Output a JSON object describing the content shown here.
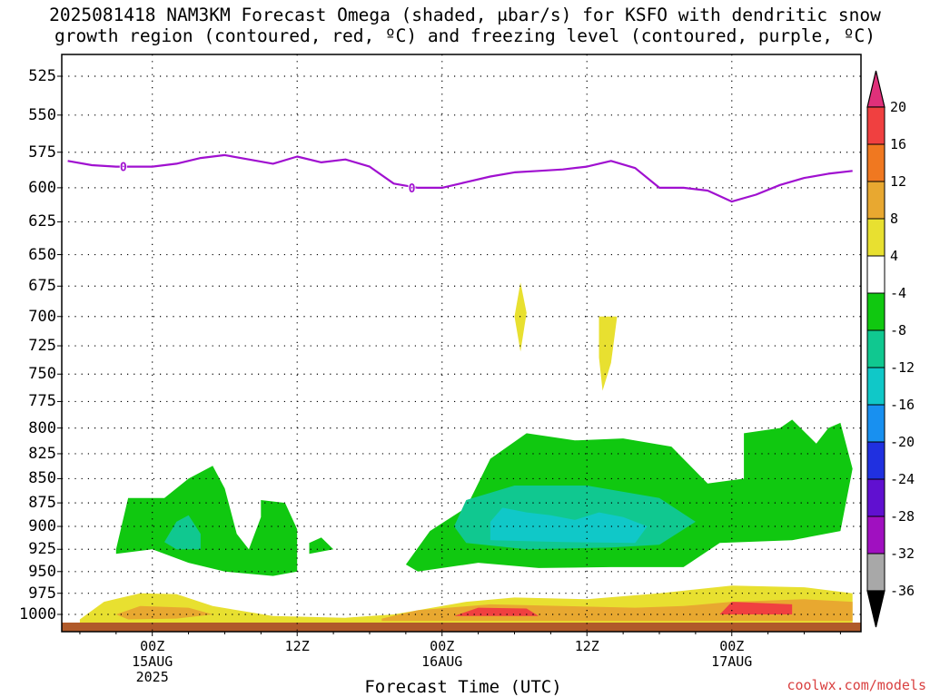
{
  "title_line1": "2025081418 NAM3KM Forecast Omega (shaded, μbar/s) for KSFO with dendritic snow",
  "title_line2": "growth region (contoured, red, ºC) and freezing level (contoured, purple, ºC)",
  "xaxis_label": "Forecast Time (UTC)",
  "credit": "coolwx.com/models",
  "chart_data": {
    "type": "heatmap",
    "title": "2025081418 NAM3KM Forecast Omega (shaded, μbar/s) for KSFO with dendritic snow growth region (contoured, red, ºC) and freezing level (contoured, purple, ºC)",
    "xlabel": "Forecast Time (UTC)",
    "ylabel": "",
    "y_ticks": [
      "525",
      "550",
      "575",
      "600",
      "625",
      "650",
      "675",
      "700",
      "725",
      "750",
      "775",
      "800",
      "825",
      "850",
      "875",
      "900",
      "925",
      "950",
      "975",
      "1000"
    ],
    "x_ticks": [
      {
        "label": "00Z",
        "sub1": "15AUG",
        "sub2": "2025"
      },
      {
        "label": "12Z",
        "sub1": "",
        "sub2": ""
      },
      {
        "label": "00Z",
        "sub1": "16AUG",
        "sub2": ""
      },
      {
        "label": "12Z",
        "sub1": "",
        "sub2": ""
      },
      {
        "label": "00Z",
        "sub1": "17AUG",
        "sub2": ""
      }
    ],
    "y_range_hpa": [
      1015,
      510
    ],
    "grid": true,
    "colorbar": {
      "labels": [
        "20",
        "16",
        "12",
        "8",
        "4",
        "-4",
        "-8",
        "-12",
        "-16",
        "-20",
        "-24",
        "-28",
        "-32",
        "-36"
      ],
      "bins": [
        {
          "low": 20,
          "high": 99,
          "color": "#e0307a"
        },
        {
          "low": 16,
          "high": 20,
          "color": "#f04040"
        },
        {
          "low": 12,
          "high": 16,
          "color": "#f07820"
        },
        {
          "low": 8,
          "high": 12,
          "color": "#e8a830"
        },
        {
          "low": 4,
          "high": 8,
          "color": "#e8e030"
        },
        {
          "low": -4,
          "high": 4,
          "color": "#ffffff"
        },
        {
          "low": -8,
          "high": -4,
          "color": "#10c810"
        },
        {
          "low": -12,
          "high": -8,
          "color": "#10c890"
        },
        {
          "low": -16,
          "high": -12,
          "color": "#10c8c8"
        },
        {
          "low": -20,
          "high": -16,
          "color": "#1890f0"
        },
        {
          "low": -24,
          "high": -20,
          "color": "#2030e0"
        },
        {
          "low": -28,
          "high": -24,
          "color": "#6010d0"
        },
        {
          "low": -32,
          "high": -28,
          "color": "#a010c0"
        },
        {
          "low": -36,
          "high": -32,
          "color": "#a8a8a8"
        },
        {
          "low": -99,
          "high": -36,
          "color": "#000000"
        }
      ]
    },
    "freezing_level": {
      "color": "#a010d0",
      "contour_label": "0",
      "series": [
        {
          "time_h": -7,
          "hpa": 581
        },
        {
          "time_h": -5,
          "hpa": 584
        },
        {
          "time_h": -3,
          "hpa": 585
        },
        {
          "time_h": 0,
          "hpa": 585
        },
        {
          "time_h": 2,
          "hpa": 583
        },
        {
          "time_h": 4,
          "hpa": 579
        },
        {
          "time_h": 6,
          "hpa": 577
        },
        {
          "time_h": 8,
          "hpa": 580
        },
        {
          "time_h": 10,
          "hpa": 583
        },
        {
          "time_h": 12,
          "hpa": 578
        },
        {
          "time_h": 14,
          "hpa": 582
        },
        {
          "time_h": 16,
          "hpa": 580
        },
        {
          "time_h": 18,
          "hpa": 585
        },
        {
          "time_h": 20,
          "hpa": 597
        },
        {
          "time_h": 22,
          "hpa": 600
        },
        {
          "time_h": 24,
          "hpa": 600
        },
        {
          "time_h": 26,
          "hpa": 596
        },
        {
          "time_h": 28,
          "hpa": 592
        },
        {
          "time_h": 30,
          "hpa": 589
        },
        {
          "time_h": 32,
          "hpa": 588
        },
        {
          "time_h": 34,
          "hpa": 587
        },
        {
          "time_h": 36,
          "hpa": 585
        },
        {
          "time_h": 38,
          "hpa": 581
        },
        {
          "time_h": 40,
          "hpa": 586
        },
        {
          "time_h": 42,
          "hpa": 600
        },
        {
          "time_h": 44,
          "hpa": 600
        },
        {
          "time_h": 46,
          "hpa": 602
        },
        {
          "time_h": 48,
          "hpa": 610
        },
        {
          "time_h": 50,
          "hpa": 605
        },
        {
          "time_h": 52,
          "hpa": 598
        },
        {
          "time_h": 54,
          "hpa": 593
        },
        {
          "time_h": 56,
          "hpa": 590
        },
        {
          "time_h": 58,
          "hpa": 588
        }
      ]
    },
    "omega_regions": [
      {
        "name": "surface-warm",
        "value": 6,
        "points": [
          [
            -6,
            1006
          ],
          [
            -4,
            985
          ],
          [
            -1,
            975
          ],
          [
            2,
            976
          ],
          [
            5,
            990
          ],
          [
            10,
            1002
          ],
          [
            16,
            1004
          ],
          [
            20,
            1000
          ],
          [
            26,
            985
          ],
          [
            30,
            980
          ],
          [
            36,
            982
          ],
          [
            42,
            975
          ],
          [
            48,
            966
          ],
          [
            54,
            968
          ],
          [
            58,
            975
          ],
          [
            58,
            1010
          ],
          [
            -6,
            1010
          ]
        ]
      },
      {
        "name": "surface-orange-1",
        "value": 10,
        "points": [
          [
            -3,
            1000
          ],
          [
            -1,
            990
          ],
          [
            3,
            992
          ],
          [
            5,
            1000
          ],
          [
            2,
            1005
          ],
          [
            -2,
            1006
          ]
        ]
      },
      {
        "name": "surface-orange-2",
        "value": 10,
        "points": [
          [
            19,
            1005
          ],
          [
            22,
            995
          ],
          [
            28,
            988
          ],
          [
            34,
            990
          ],
          [
            40,
            992
          ],
          [
            44,
            990
          ],
          [
            48,
            985
          ],
          [
            54,
            982
          ],
          [
            58,
            985
          ],
          [
            58,
            1008
          ],
          [
            19,
            1008
          ]
        ]
      },
      {
        "name": "surface-red-1",
        "value": 17,
        "points": [
          [
            25,
            1002
          ],
          [
            27,
            992
          ],
          [
            31,
            993
          ],
          [
            32,
            1002
          ]
        ]
      },
      {
        "name": "surface-red-2",
        "value": 17,
        "points": [
          [
            47,
            1000
          ],
          [
            48,
            985
          ],
          [
            53,
            988
          ],
          [
            53,
            1000
          ]
        ]
      },
      {
        "name": "rising-green-1",
        "value": -6,
        "points": [
          [
            -3,
            925
          ],
          [
            -2,
            870
          ],
          [
            1,
            870
          ],
          [
            3,
            850
          ],
          [
            5,
            837
          ],
          [
            6,
            860
          ],
          [
            7,
            908
          ],
          [
            8,
            925
          ],
          [
            9,
            890
          ],
          [
            9,
            872
          ],
          [
            11,
            875
          ],
          [
            12,
            903
          ],
          [
            12,
            950
          ],
          [
            10,
            955
          ],
          [
            6,
            950
          ],
          [
            3,
            940
          ],
          [
            0,
            925
          ],
          [
            -3,
            930
          ]
        ]
      },
      {
        "name": "rising-green-2",
        "value": -6,
        "points": [
          [
            13,
            918
          ],
          [
            14,
            912
          ],
          [
            15,
            925
          ],
          [
            13,
            930
          ]
        ]
      },
      {
        "name": "rising-green-3",
        "value": -6,
        "points": [
          [
            21,
            942
          ],
          [
            23,
            905
          ],
          [
            26,
            880
          ],
          [
            28,
            830
          ],
          [
            31,
            805
          ],
          [
            35,
            812
          ],
          [
            39,
            810
          ],
          [
            43,
            818
          ],
          [
            46,
            855
          ],
          [
            49,
            850
          ],
          [
            49,
            805
          ],
          [
            52,
            800
          ],
          [
            53,
            792
          ],
          [
            55,
            815
          ],
          [
            56,
            800
          ],
          [
            57,
            795
          ],
          [
            58,
            840
          ],
          [
            57,
            905
          ],
          [
            53,
            915
          ],
          [
            47,
            918
          ],
          [
            44,
            945
          ],
          [
            38,
            945
          ],
          [
            32,
            946
          ],
          [
            27,
            940
          ],
          [
            22,
            950
          ]
        ]
      },
      {
        "name": "rising-teal",
        "value": -10,
        "points": [
          [
            25,
            900
          ],
          [
            26,
            872
          ],
          [
            30,
            857
          ],
          [
            36,
            857
          ],
          [
            42,
            870
          ],
          [
            45,
            895
          ],
          [
            42,
            920
          ],
          [
            38,
            923
          ],
          [
            31,
            925
          ],
          [
            26,
            918
          ]
        ]
      },
      {
        "name": "rising-teal-2",
        "value": -10,
        "points": [
          [
            1,
            917
          ],
          [
            2,
            895
          ],
          [
            3,
            888
          ],
          [
            4,
            908
          ],
          [
            4,
            925
          ],
          [
            2,
            925
          ]
        ]
      },
      {
        "name": "rising-cyan",
        "value": -14,
        "points": [
          [
            28,
            895
          ],
          [
            29,
            880
          ],
          [
            31,
            885
          ],
          [
            33,
            888
          ],
          [
            35,
            893
          ],
          [
            37,
            885
          ],
          [
            39,
            890
          ],
          [
            41,
            900
          ],
          [
            40,
            918
          ],
          [
            34,
            917
          ],
          [
            28,
            915
          ]
        ]
      },
      {
        "name": "sinking-yellow-1",
        "value": 6,
        "points": [
          [
            30,
            700
          ],
          [
            30.5,
            672
          ],
          [
            31,
            697
          ],
          [
            30.5,
            730
          ]
        ]
      },
      {
        "name": "sinking-yellow-2",
        "value": 6,
        "points": [
          [
            37,
            700
          ],
          [
            38.5,
            700
          ],
          [
            38,
            740
          ],
          [
            37.3,
            765
          ],
          [
            37,
            735
          ]
        ]
      }
    ]
  }
}
